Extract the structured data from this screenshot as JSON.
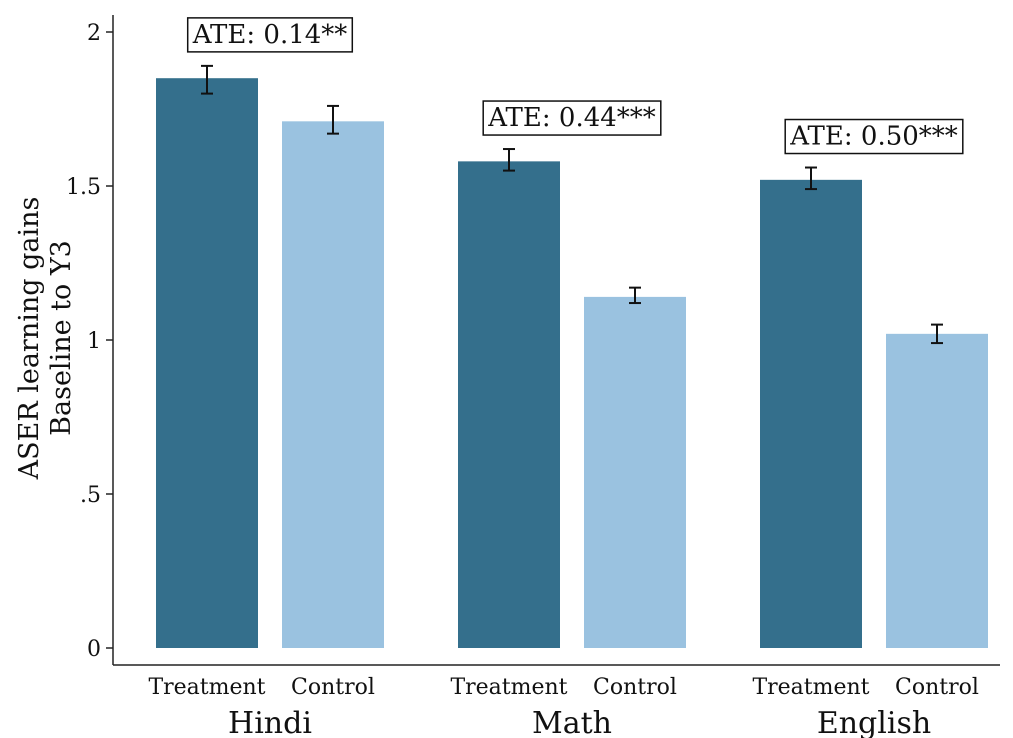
{
  "chart_data": {
    "type": "bar",
    "title": "",
    "ylabel_lines": [
      "ASER learning gains",
      "Baseline to Y3"
    ],
    "ylim": [
      0,
      2
    ],
    "yticks": [
      {
        "value": 0,
        "label": "0"
      },
      {
        "value": 0.5,
        "label": ".5"
      },
      {
        "value": 1,
        "label": "1"
      },
      {
        "value": 1.5,
        "label": "1.5"
      },
      {
        "value": 2,
        "label": "2"
      }
    ],
    "grid": false,
    "colors": {
      "Treatment": "#346f8c",
      "Control": "#9ac2e0"
    },
    "groups": [
      {
        "name": "Hindi",
        "ate": "ATE: 0.14**",
        "bars": [
          {
            "label": "Treatment",
            "value": 1.85,
            "err_low": 1.8,
            "err_high": 1.89
          },
          {
            "label": "Control",
            "value": 1.71,
            "err_low": 1.67,
            "err_high": 1.76
          }
        ]
      },
      {
        "name": "Math",
        "ate": "ATE: 0.44***",
        "bars": [
          {
            "label": "Treatment",
            "value": 1.58,
            "err_low": 1.55,
            "err_high": 1.62
          },
          {
            "label": "Control",
            "value": 1.14,
            "err_low": 1.12,
            "err_high": 1.17
          }
        ]
      },
      {
        "name": "English",
        "ate": "ATE: 0.50***",
        "bars": [
          {
            "label": "Treatment",
            "value": 1.52,
            "err_low": 1.49,
            "err_high": 1.56
          },
          {
            "label": "Control",
            "value": 1.02,
            "err_low": 0.99,
            "err_high": 1.05
          }
        ]
      }
    ]
  }
}
